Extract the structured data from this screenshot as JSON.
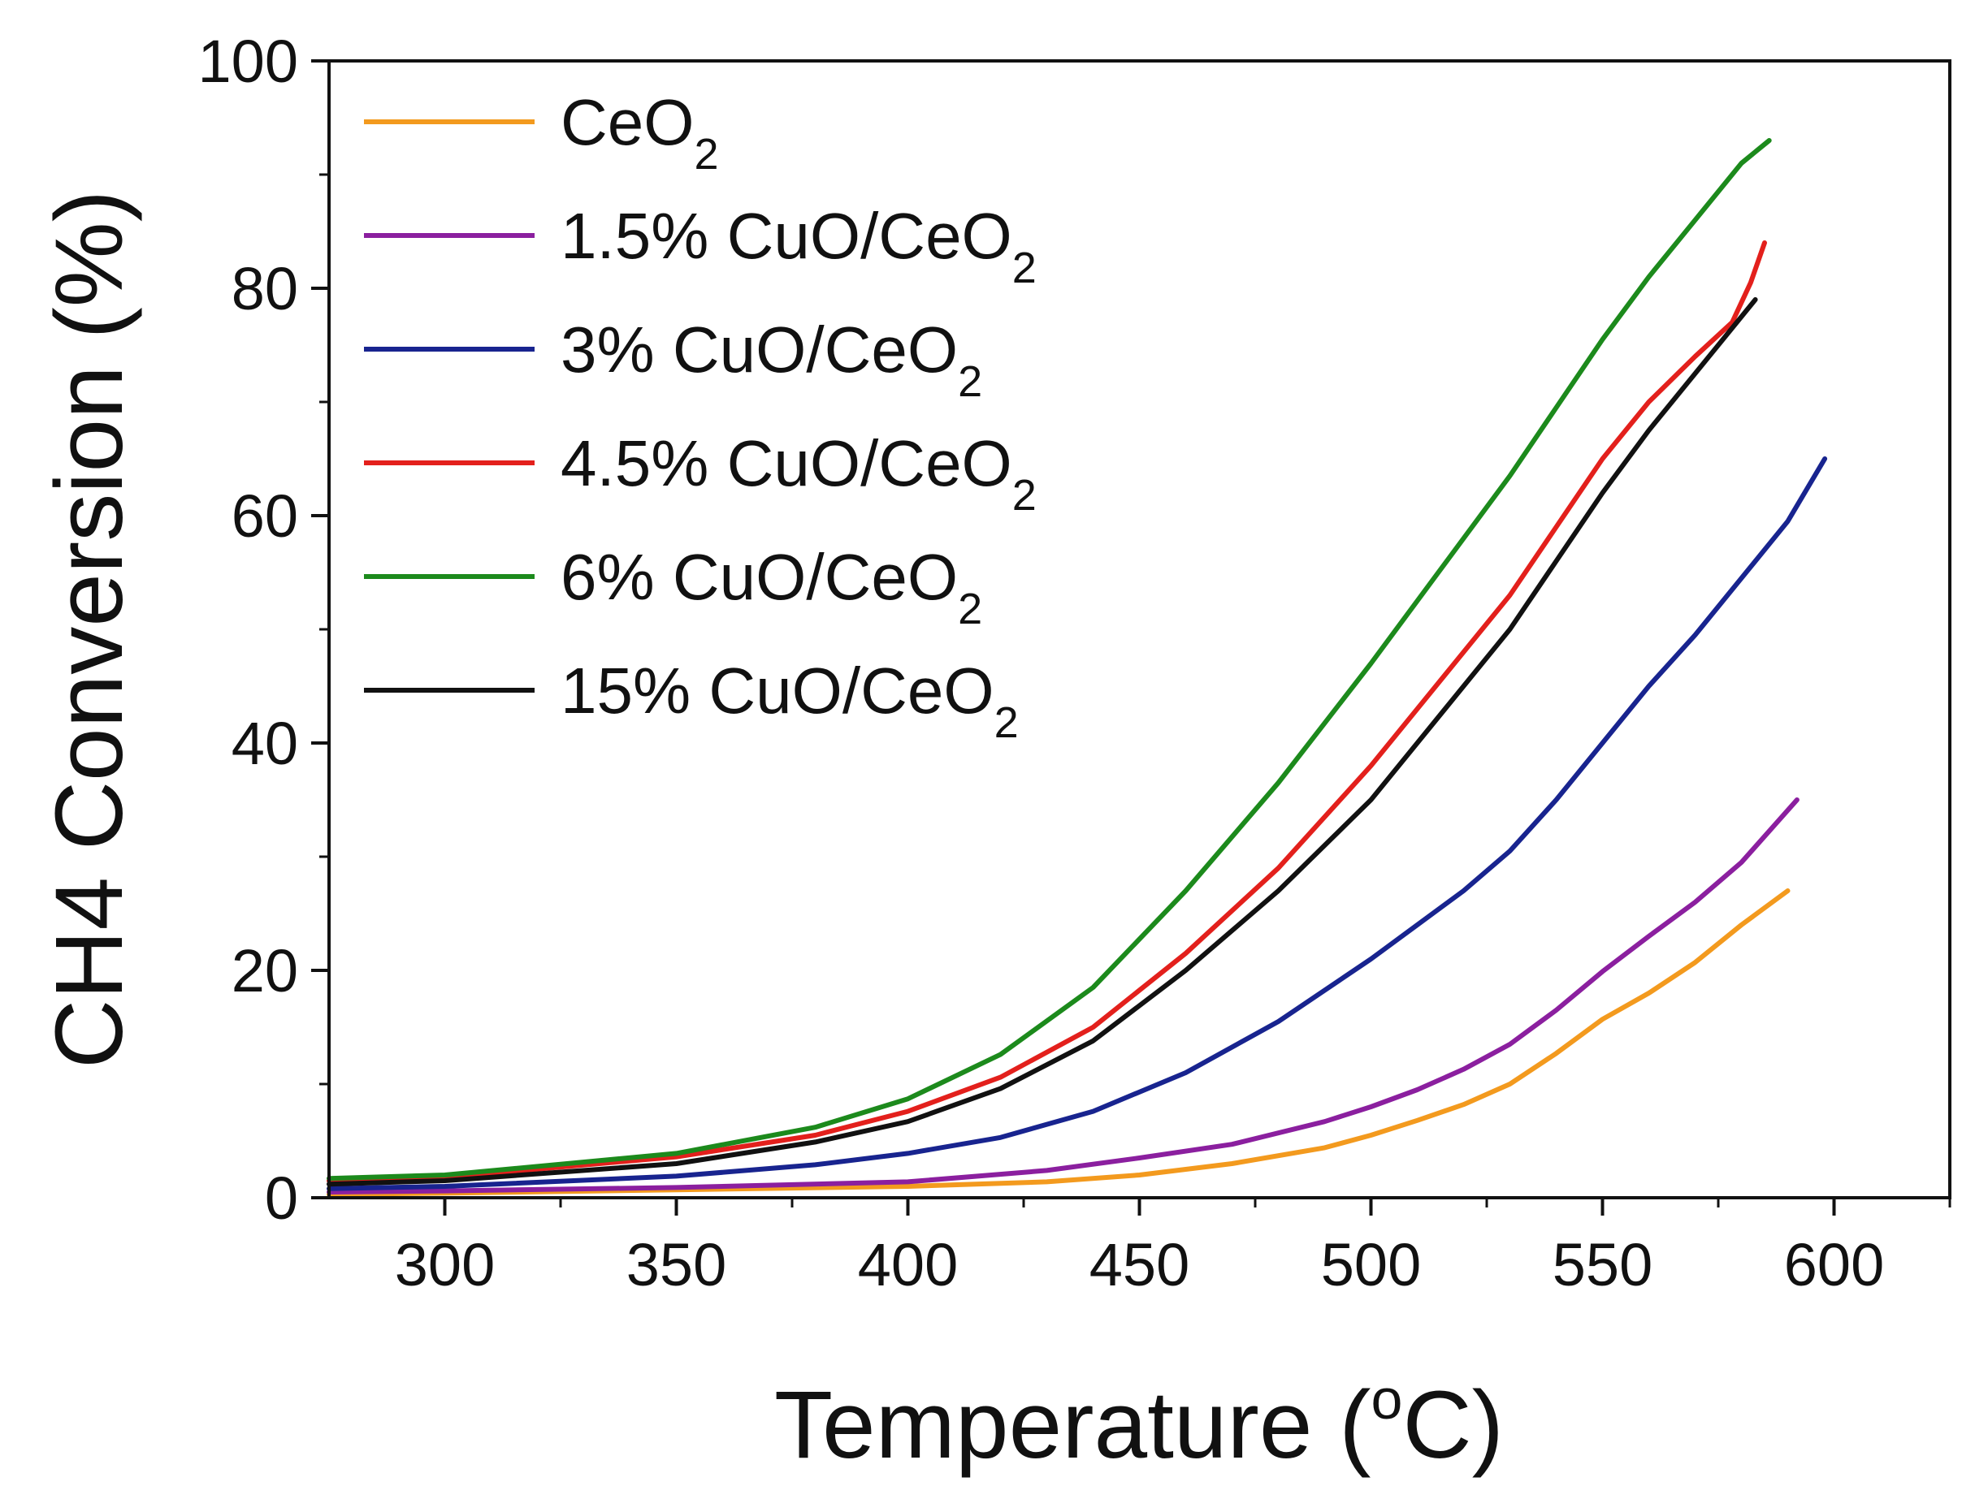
{
  "chart_data": {
    "type": "line",
    "xlabel": {
      "main": "Temperature (",
      "sup": "o",
      "tail": "C)"
    },
    "ylabel": {
      "main": "CH4 Conversion (%)"
    },
    "xlim": [
      275,
      625
    ],
    "ylim": [
      0,
      100
    ],
    "xticks": [
      300,
      350,
      400,
      450,
      500,
      550,
      600
    ],
    "yticks": [
      0,
      20,
      40,
      60,
      80,
      100
    ],
    "grid": false,
    "legend_position": "top-left",
    "series": [
      {
        "name": "CeO",
        "name_sub": "2",
        "color": "#f39a1e",
        "x": [
          275,
          300,
          350,
          400,
          430,
          450,
          470,
          490,
          500,
          510,
          520,
          530,
          540,
          550,
          560,
          570,
          580,
          590
        ],
        "y": [
          0.3,
          0.4,
          0.7,
          1.0,
          1.4,
          2.0,
          3.0,
          4.4,
          5.5,
          6.8,
          8.2,
          10.0,
          12.7,
          15.7,
          18.0,
          20.7,
          24.0,
          27.0
        ]
      },
      {
        "name": "1.5% CuO/CeO",
        "name_sub": "2",
        "color": "#8b1f9f",
        "x": [
          275,
          300,
          350,
          400,
          430,
          450,
          470,
          490,
          500,
          510,
          520,
          530,
          540,
          550,
          560,
          570,
          580,
          592
        ],
        "y": [
          0.5,
          0.6,
          0.9,
          1.4,
          2.4,
          3.5,
          4.7,
          6.7,
          8.0,
          9.5,
          11.3,
          13.5,
          16.5,
          19.9,
          23.0,
          26.0,
          29.5,
          35.0
        ]
      },
      {
        "name": "3% CuO/CeO",
        "name_sub": "2",
        "color": "#18248f",
        "x": [
          275,
          300,
          350,
          380,
          400,
          420,
          440,
          460,
          480,
          500,
          520,
          530,
          540,
          550,
          560,
          570,
          580,
          590,
          598
        ],
        "y": [
          0.8,
          1.0,
          1.9,
          2.9,
          3.9,
          5.3,
          7.6,
          11.0,
          15.5,
          21.0,
          27.0,
          30.5,
          35.0,
          40.0,
          45.0,
          49.5,
          54.5,
          59.5,
          65.0
        ]
      },
      {
        "name": "4.5% CuO/CeO",
        "name_sub": "2",
        "color": "#e3201c",
        "x": [
          275,
          300,
          350,
          380,
          400,
          420,
          440,
          460,
          480,
          500,
          510,
          520,
          530,
          540,
          550,
          560,
          570,
          578,
          582,
          585
        ],
        "y": [
          1.5,
          1.8,
          3.6,
          5.5,
          7.6,
          10.6,
          15.0,
          21.5,
          29.0,
          38.0,
          43.0,
          48.0,
          53.0,
          59.0,
          65.0,
          70.0,
          74.0,
          77.0,
          80.5,
          84.0
        ]
      },
      {
        "name": "6% CuO/CeO",
        "name_sub": "2",
        "color": "#1c8a1c",
        "x": [
          275,
          300,
          350,
          380,
          400,
          420,
          440,
          460,
          480,
          500,
          510,
          520,
          530,
          540,
          550,
          560,
          570,
          580,
          586
        ],
        "y": [
          1.7,
          2.0,
          3.9,
          6.2,
          8.7,
          12.6,
          18.5,
          27.0,
          36.5,
          47.0,
          52.5,
          58.0,
          63.5,
          69.5,
          75.5,
          81.0,
          86.0,
          91.0,
          93.0
        ]
      },
      {
        "name": "15% CuO/CeO",
        "name_sub": "2",
        "color": "#111111",
        "x": [
          275,
          300,
          350,
          380,
          400,
          420,
          440,
          460,
          480,
          500,
          510,
          520,
          530,
          540,
          550,
          560,
          570,
          583
        ],
        "y": [
          1.2,
          1.5,
          3.0,
          4.9,
          6.7,
          9.6,
          13.8,
          20.0,
          27.0,
          35.0,
          40.0,
          45.0,
          50.0,
          56.0,
          62.0,
          67.5,
          72.5,
          79.0
        ]
      }
    ]
  }
}
